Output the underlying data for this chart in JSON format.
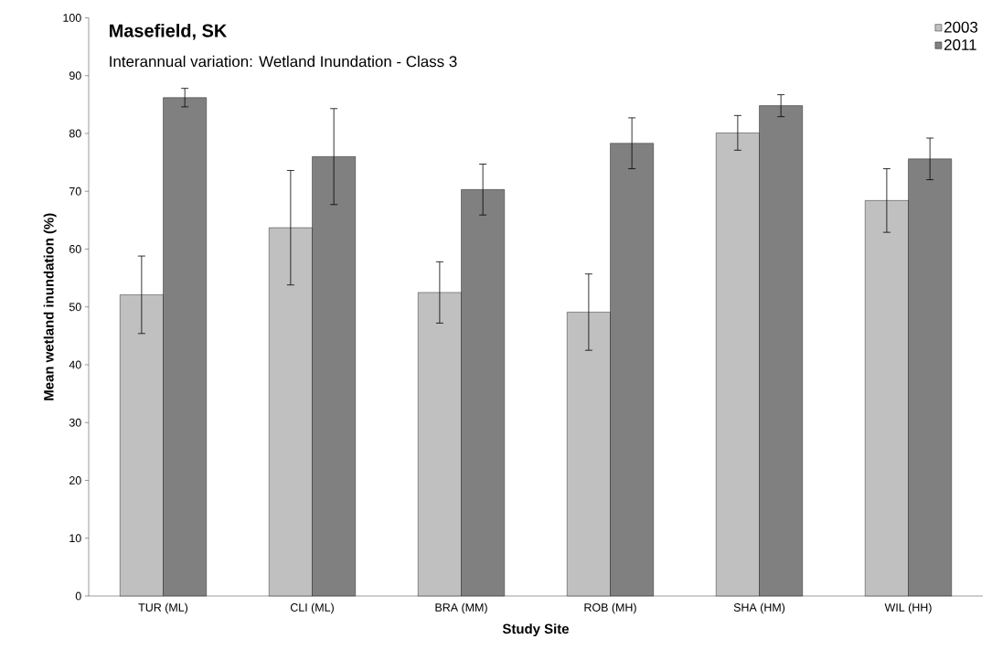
{
  "chart_data": {
    "type": "bar",
    "title": "Masefield, SK",
    "subtitle": "Interannual variation: Wetland Inundation - Class 3",
    "xlabel": "Study Site",
    "ylabel": "Mean wetland inundation (%)",
    "categories": [
      "TUR (ML)",
      "CLI (ML)",
      "BRA (MM)",
      "ROB (MH)",
      "SHA (HM)",
      "WIL (HH)"
    ],
    "series": [
      {
        "name": "2003",
        "color": "#c0c0c0",
        "values": [
          52.1,
          63.7,
          52.5,
          49.1,
          80.1,
          68.4
        ],
        "errors": [
          6.7,
          9.9,
          5.3,
          6.6,
          3.0,
          5.5
        ]
      },
      {
        "name": "2011",
        "color": "#808080",
        "values": [
          86.2,
          76.0,
          70.3,
          78.3,
          84.8,
          75.6
        ],
        "errors": [
          1.6,
          8.3,
          4.4,
          4.4,
          1.9,
          3.6
        ]
      }
    ],
    "ylim": [
      0,
      100
    ],
    "yticks": [
      0,
      10,
      20,
      30,
      40,
      50,
      60,
      70,
      80,
      90,
      100
    ],
    "grid": false,
    "legend": "top right"
  }
}
